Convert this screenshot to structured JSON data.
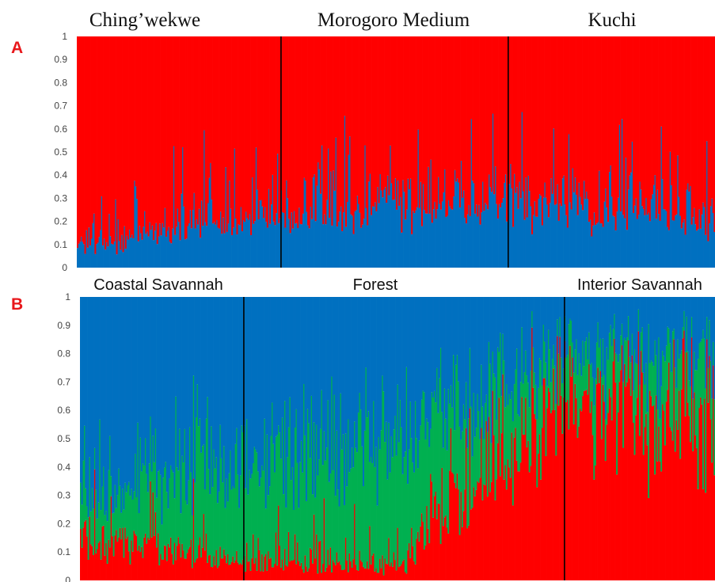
{
  "chart_data": [
    {
      "panel": "A",
      "type": "bar",
      "stacked": true,
      "normalized": true,
      "ylim": [
        0,
        1
      ],
      "yticks": [
        "0",
        "0.1",
        "0.2",
        "0.3",
        "0.4",
        "0.5",
        "0.6",
        "0.7",
        "0.8",
        "0.9",
        "1"
      ],
      "grid": false,
      "legend": "none",
      "populations": [
        {
          "label": "Ching’wekwe",
          "share": 0.32
        },
        {
          "label": "Morogoro Medium",
          "share": 0.676
        },
        {
          "label": "Kuchi",
          "share": 1.0
        }
      ],
      "colors": [
        "#0070c0",
        "#ff0000"
      ],
      "clusters": [
        {
          "color": "#0070c0",
          "mean_by_region": [
            0.09,
            0.22,
            0.28,
            0.28,
            0.22
          ]
        },
        {
          "color": "#ff0000",
          "mean_by_region": [
            0.91,
            0.78,
            0.72,
            0.72,
            0.78
          ]
        }
      ]
    },
    {
      "panel": "B",
      "type": "bar",
      "stacked": true,
      "normalized": true,
      "ylim": [
        0,
        1
      ],
      "yticks": [
        "0",
        "0.1",
        "0.2",
        "0.3",
        "0.4",
        "0.5",
        "0.6",
        "0.7",
        "0.8",
        "0.9",
        "1"
      ],
      "grid": false,
      "legend": "none",
      "populations": [
        {
          "label": "Coastal Savannah",
          "share": 0.258
        },
        {
          "label": "Forest",
          "share": 0.763
        },
        {
          "label": "Interior Savannah",
          "share": 1.0
        }
      ],
      "colors": [
        "#ff0000",
        "#00b050",
        "#0070c0"
      ],
      "clusters": [
        {
          "color": "#ff0000",
          "mean_by_region": [
            0.16,
            0.07,
            0.06,
            0.65,
            0.55
          ]
        },
        {
          "color": "#00b050",
          "mean_by_region": [
            0.14,
            0.35,
            0.4,
            0.15,
            0.22
          ]
        },
        {
          "color": "#0070c0",
          "mean_by_region": [
            0.7,
            0.58,
            0.54,
            0.2,
            0.23
          ]
        }
      ]
    }
  ]
}
